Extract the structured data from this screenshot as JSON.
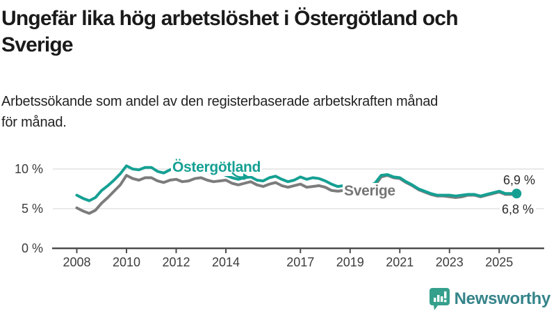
{
  "title": "Ungefär lika hög arbetslöshet i Östergötland och Sverige",
  "title_lines": [
    "Ungefär lika hög arbetslöshet i Östergötland och",
    "Sverige"
  ],
  "subtitle": "Arbetssökande som andel av den registerbaserade arbetskraften månad för månad.",
  "subtitle_lines": [
    "Arbetssökande som andel av den registerbaserade arbetskraften månad",
    "för månad."
  ],
  "colors": {
    "ostergotland": "#15a093",
    "sverige": "#7c7c7c",
    "grid": "#dcdcdc",
    "axis": "#4d4d4d",
    "tick_text": "#3c3c3c",
    "title_text": "#1a1a1a",
    "logo_icon": "#35a08c",
    "logo_text": "#35848a"
  },
  "annotations": {
    "ostergotland_label": "Östergötland",
    "sverige_label": "Sverige",
    "end_label_top": "6,9 %",
    "end_label_bottom": "6,8 %"
  },
  "logo": {
    "text": "Newsworthy",
    "icon": "bar-chart-speech-bubble"
  },
  "chart_data": {
    "type": "line",
    "title": "Ungefär lika hög arbetslöshet i Östergötland och Sverige",
    "xlabel": "",
    "ylabel": "Arbetssökande som andel av den registerbaserade arbetskraften, %",
    "ylim": [
      0,
      10.8
    ],
    "xlim": [
      2007.6,
      2026.3
    ],
    "grid": "horizontal",
    "legend_position": "inline-labels",
    "x_ticks": [
      {
        "value": 2008,
        "label": "2008"
      },
      {
        "value": 2010,
        "label": "2010"
      },
      {
        "value": 2012,
        "label": "2012"
      },
      {
        "value": 2014,
        "label": "2014"
      },
      {
        "value": 2017,
        "label": "2017"
      },
      {
        "value": 2019,
        "label": "2019"
      },
      {
        "value": 2021,
        "label": "2021"
      },
      {
        "value": 2023,
        "label": "2023"
      },
      {
        "value": 2025,
        "label": "2025"
      }
    ],
    "y_ticks": [
      {
        "value": 0,
        "label": "0 %"
      },
      {
        "value": 5,
        "label": "5 %"
      },
      {
        "value": 10,
        "label": "10 %"
      }
    ],
    "x": [
      2008.0,
      2008.25,
      2008.5,
      2008.75,
      2009.0,
      2009.25,
      2009.5,
      2009.75,
      2010.0,
      2010.25,
      2010.5,
      2010.75,
      2011.0,
      2011.25,
      2011.5,
      2011.75,
      2012.0,
      2012.25,
      2012.5,
      2012.75,
      2013.0,
      2013.25,
      2013.5,
      2013.75,
      2014.0,
      2014.25,
      2014.5,
      2014.75,
      2015.0,
      2015.25,
      2015.5,
      2015.75,
      2016.0,
      2016.25,
      2016.5,
      2016.75,
      2017.0,
      2017.25,
      2017.5,
      2017.75,
      2018.0,
      2018.25,
      2018.5,
      2018.75,
      2019.0,
      2019.25,
      2019.5,
      2019.75,
      2020.0,
      2020.25,
      2020.5,
      2020.75,
      2021.0,
      2021.25,
      2021.5,
      2021.75,
      2022.0,
      2022.25,
      2022.5,
      2022.75,
      2023.0,
      2023.25,
      2023.5,
      2023.75,
      2024.0,
      2024.25,
      2024.5,
      2024.75,
      2025.0,
      2025.25,
      2025.5,
      2025.7
    ],
    "series": [
      {
        "name": "Östergötland",
        "color": "#15a093",
        "end_label": "6,9 %",
        "end_value": 6.9,
        "values": [
          6.7,
          6.3,
          6.0,
          6.4,
          7.3,
          7.9,
          8.6,
          9.4,
          10.4,
          10.0,
          9.9,
          10.2,
          10.2,
          9.7,
          9.5,
          9.9,
          10.1,
          9.7,
          9.8,
          10.1,
          10.2,
          9.9,
          9.7,
          9.5,
          9.2,
          8.9,
          8.7,
          8.9,
          9.0,
          8.6,
          8.5,
          8.9,
          9.1,
          8.7,
          8.4,
          8.6,
          9.0,
          8.7,
          8.9,
          8.8,
          8.5,
          8.1,
          7.8,
          7.9,
          7.9,
          7.6,
          7.7,
          7.9,
          8.2,
          9.2,
          9.3,
          9.0,
          8.9,
          8.4,
          8.0,
          7.5,
          7.2,
          6.9,
          6.7,
          6.7,
          6.7,
          6.6,
          6.7,
          6.8,
          6.8,
          6.6,
          6.8,
          7.0,
          7.2,
          6.9,
          6.9,
          6.9
        ]
      },
      {
        "name": "Sverige",
        "color": "#7c7c7c",
        "end_label": "6,8 %",
        "end_value": 6.8,
        "values": [
          5.1,
          4.7,
          4.4,
          4.8,
          5.7,
          6.4,
          7.2,
          8.0,
          9.2,
          8.8,
          8.6,
          8.9,
          8.9,
          8.5,
          8.3,
          8.6,
          8.7,
          8.4,
          8.5,
          8.8,
          8.9,
          8.6,
          8.4,
          8.5,
          8.6,
          8.2,
          8.0,
          8.2,
          8.4,
          8.0,
          7.8,
          8.1,
          8.3,
          7.9,
          7.7,
          7.9,
          8.1,
          7.7,
          7.8,
          7.9,
          7.7,
          7.3,
          7.2,
          7.3,
          7.2,
          7.0,
          7.1,
          7.4,
          7.9,
          9.0,
          9.2,
          8.9,
          8.8,
          8.3,
          7.9,
          7.4,
          7.1,
          6.8,
          6.6,
          6.6,
          6.5,
          6.4,
          6.5,
          6.7,
          6.7,
          6.5,
          6.7,
          6.9,
          7.1,
          6.8,
          6.8,
          6.8
        ]
      }
    ]
  }
}
